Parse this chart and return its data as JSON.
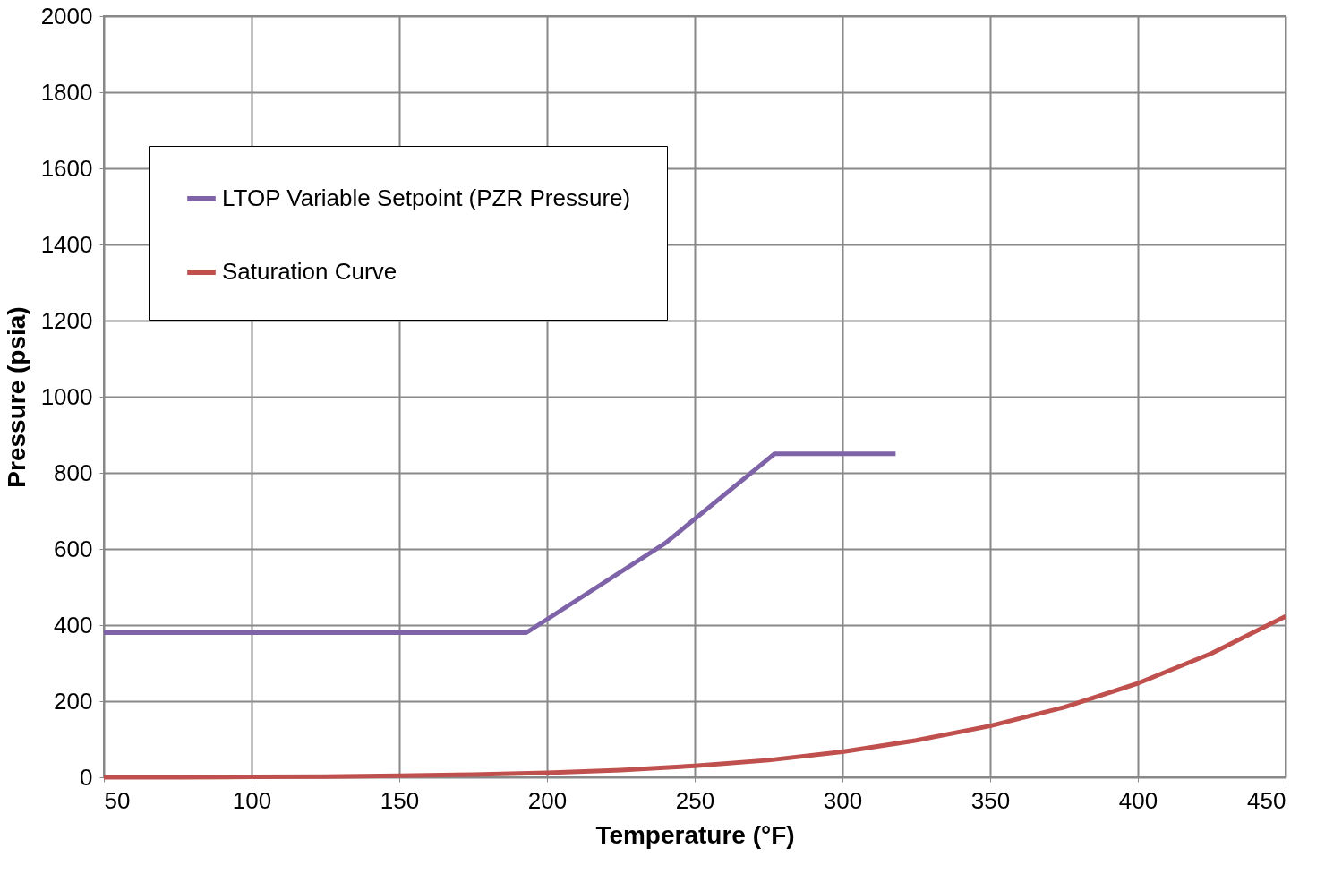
{
  "chart_data": {
    "type": "line",
    "xlabel": "Temperature (°F)",
    "ylabel": "Pressure (psia)",
    "xlim": [
      50,
      450
    ],
    "xticks": [
      50,
      100,
      150,
      200,
      250,
      300,
      350,
      400,
      450
    ],
    "ylim": [
      0,
      2000
    ],
    "yticks": [
      0,
      200,
      400,
      600,
      800,
      1000,
      1200,
      1400,
      1600,
      1800,
      2000
    ],
    "grid": true,
    "legend": "top left",
    "marker": "none",
    "line_style": "solid",
    "series": [
      {
        "name": "LTOP Variable Setpoint (PZR Pressure)",
        "color": "#7f63a8",
        "x": [
          50,
          193,
          240,
          277,
          318
        ],
        "values": [
          380,
          380,
          615,
          850,
          850
        ]
      },
      {
        "name": "Saturation Curve",
        "color": "#c0504d",
        "x": [
          50,
          75,
          100,
          125,
          150,
          175,
          200,
          225,
          250,
          275,
          300,
          325,
          350,
          375,
          400,
          425,
          450
        ],
        "values": [
          0,
          0,
          1,
          2,
          4,
          7,
          12,
          19,
          30,
          45,
          67,
          97,
          135,
          184,
          247,
          326,
          423
        ]
      }
    ]
  }
}
